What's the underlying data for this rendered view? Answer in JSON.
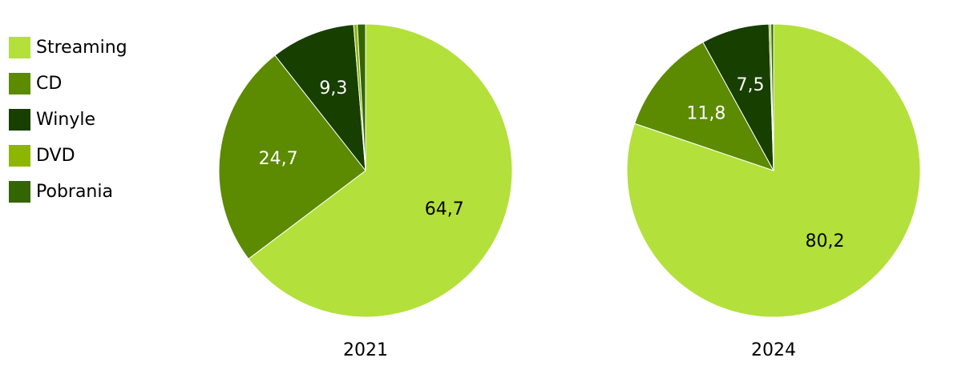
{
  "chart_data": [
    {
      "type": "pie",
      "title": "2021",
      "categories": [
        "Streaming",
        "CD",
        "Winyle",
        "DVD",
        "Pobrania"
      ],
      "values": [
        64.7,
        24.7,
        9.3,
        0.4,
        0.9
      ],
      "value_labels": [
        "64,7",
        "24,7",
        "9,3",
        null,
        null
      ],
      "colors": [
        "#b3e03a",
        "#5c8a00",
        "#173f00",
        "#8db600",
        "#336600"
      ],
      "label_colors": [
        "#000000",
        "#ffffff",
        "#ffffff",
        null,
        null
      ],
      "legend": "top-left"
    },
    {
      "type": "pie",
      "title": "2024",
      "categories": [
        "Streaming",
        "CD",
        "Winyle",
        "DVD",
        "Pobrania"
      ],
      "values": [
        80.2,
        11.8,
        7.5,
        0.2,
        0.3
      ],
      "value_labels": [
        "80,2",
        "11,8",
        "7,5",
        null,
        null
      ],
      "colors": [
        "#b3e03a",
        "#5c8a00",
        "#173f00",
        "#8db600",
        "#336600"
      ],
      "label_colors": [
        "#000000",
        "#ffffff",
        "#ffffff",
        null,
        null
      ]
    }
  ]
}
